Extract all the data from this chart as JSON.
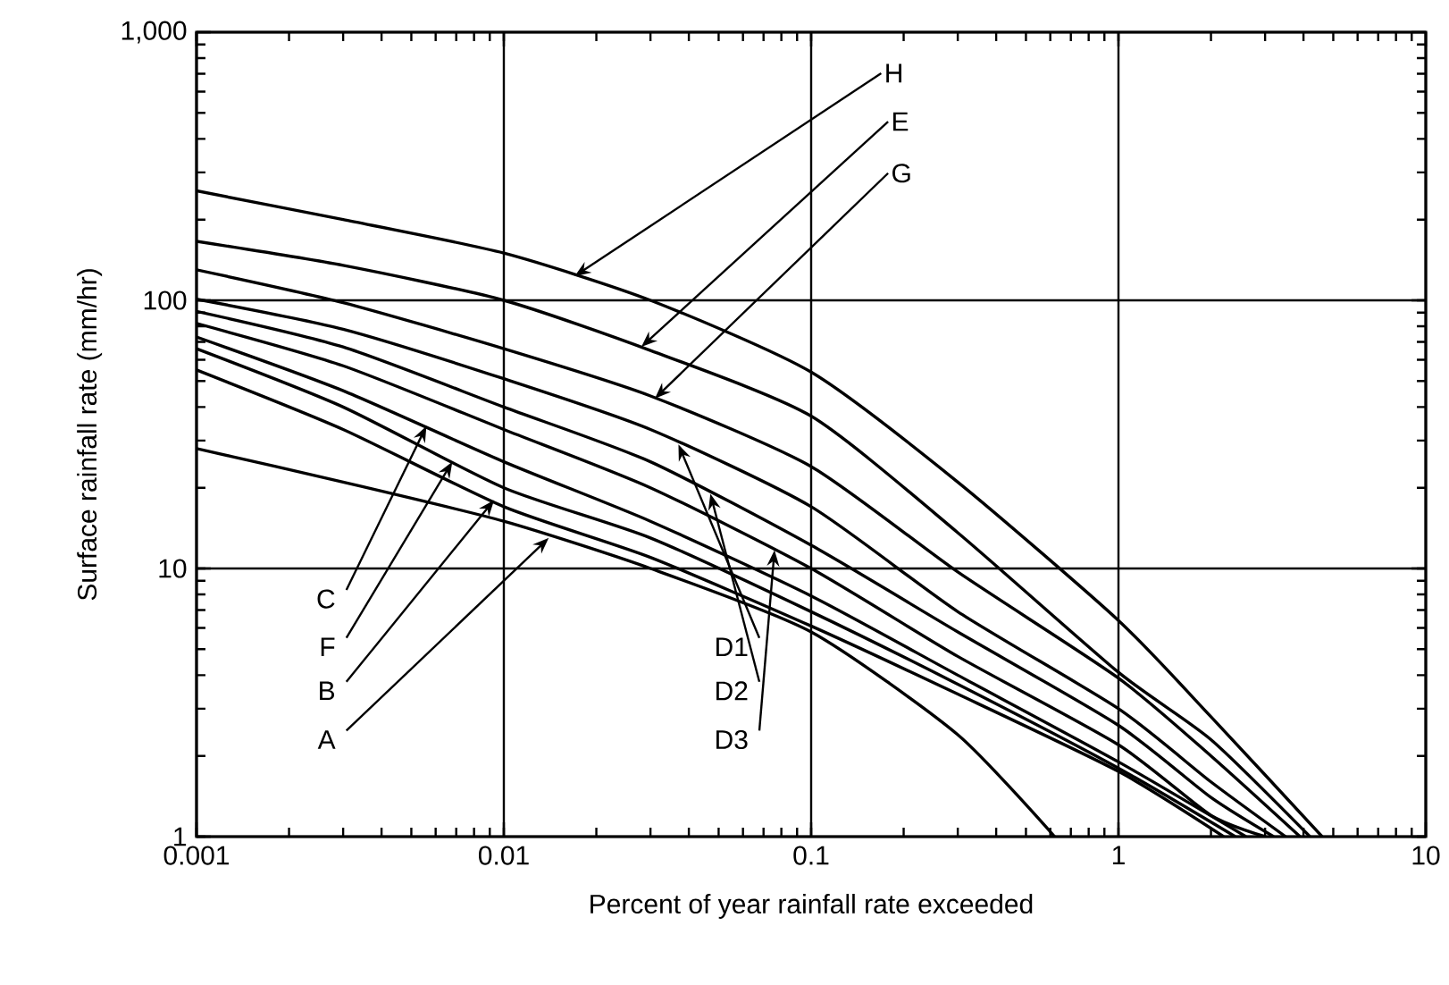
{
  "chart_data": {
    "type": "line",
    "xlabel": "Percent of year rainfall rate exceeded",
    "ylabel": "Surface rainfall rate (mm/hr)",
    "log": "xy",
    "grid": true,
    "xlim": [
      0.001,
      10
    ],
    "ylim": [
      1,
      1000
    ],
    "xticks": [
      0.001,
      0.01,
      0.1,
      1,
      10
    ],
    "yticks": [
      1,
      10,
      100,
      {
        "value": 1000,
        "label": "1,000"
      }
    ],
    "series": [
      {
        "color": "#000000",
        "x": [
          0.001,
          0.003,
          0.01,
          0.03,
          0.1,
          0.3,
          1,
          2,
          4.6
        ],
        "values": [
          256,
          200,
          150,
          100,
          54,
          21,
          6.4,
          2.8,
          1
        ]
      },
      {
        "color": "#000000",
        "x": [
          0.001,
          0.003,
          0.01,
          0.03,
          0.1,
          0.3,
          1,
          2,
          4.2
        ],
        "values": [
          166,
          135,
          100,
          65,
          37,
          13.6,
          4.1,
          2.3,
          1
        ]
      },
      {
        "color": "#000000",
        "x": [
          0.001,
          0.003,
          0.01,
          0.03,
          0.1,
          0.3,
          1,
          2,
          3.9
        ],
        "values": [
          130,
          98,
          66,
          44,
          24,
          9.7,
          3.9,
          2.0,
          1
        ]
      },
      {
        "color": "#000000",
        "x": [
          0.001,
          0.003,
          0.01,
          0.03,
          0.1,
          0.3,
          1,
          2,
          3.5
        ],
        "values": [
          101,
          78,
          51,
          33,
          17,
          6.9,
          3.0,
          1.6,
          1
        ]
      },
      {
        "color": "#000000",
        "x": [
          0.001,
          0.003,
          0.01,
          0.03,
          0.1,
          0.3,
          1,
          2,
          3.2
        ],
        "values": [
          91,
          67,
          40,
          25,
          12.2,
          5.8,
          2.6,
          1.4,
          1
        ]
      },
      {
        "color": "#000000",
        "x": [
          0.001,
          0.003,
          0.01,
          0.03,
          0.1,
          0.3,
          1,
          2,
          3.0
        ],
        "values": [
          82,
          57,
          33,
          20,
          10,
          4.7,
          2.2,
          1.2,
          1
        ]
      },
      {
        "color": "#000000",
        "x": [
          0.001,
          0.003,
          0.01,
          0.03,
          0.1,
          0.3,
          1,
          2.6
        ],
        "values": [
          73,
          46,
          25,
          15,
          7.9,
          4.0,
          1.9,
          1
        ]
      },
      {
        "color": "#000000",
        "x": [
          0.001,
          0.003,
          0.01,
          0.03,
          0.1,
          0.3,
          1,
          2.4
        ],
        "values": [
          66,
          40,
          20,
          13,
          6.9,
          3.7,
          1.8,
          1
        ]
      },
      {
        "color": "#000000",
        "x": [
          0.001,
          0.003,
          0.01,
          0.03,
          0.1,
          0.3,
          1,
          2.2
        ],
        "values": [
          55,
          33,
          17,
          11,
          6.1,
          3.4,
          1.75,
          1
        ]
      },
      {
        "color": "#000000",
        "x": [
          0.001,
          0.003,
          0.01,
          0.03,
          0.1,
          0.3,
          0.62
        ],
        "values": [
          28,
          21,
          15,
          10,
          5.8,
          2.4,
          1
        ]
      }
    ],
    "annotations": [
      {
        "text": "H",
        "x": 0.017,
        "y": 123
      },
      {
        "text": "E",
        "x": 0.028,
        "y": 67
      },
      {
        "text": "G",
        "x": 0.031,
        "y": 43
      },
      {
        "text": "C",
        "x": 0.0056,
        "y": 34
      },
      {
        "text": "F",
        "x": 0.0068,
        "y": 25
      },
      {
        "text": "B",
        "x": 0.0093,
        "y": 18
      },
      {
        "text": "A",
        "x": 0.014,
        "y": 13
      },
      {
        "text": "D1",
        "x": 0.037,
        "y": 29
      },
      {
        "text": "D2",
        "x": 0.047,
        "y": 19
      },
      {
        "text": "D3",
        "x": 0.076,
        "y": 11.7
      }
    ]
  }
}
